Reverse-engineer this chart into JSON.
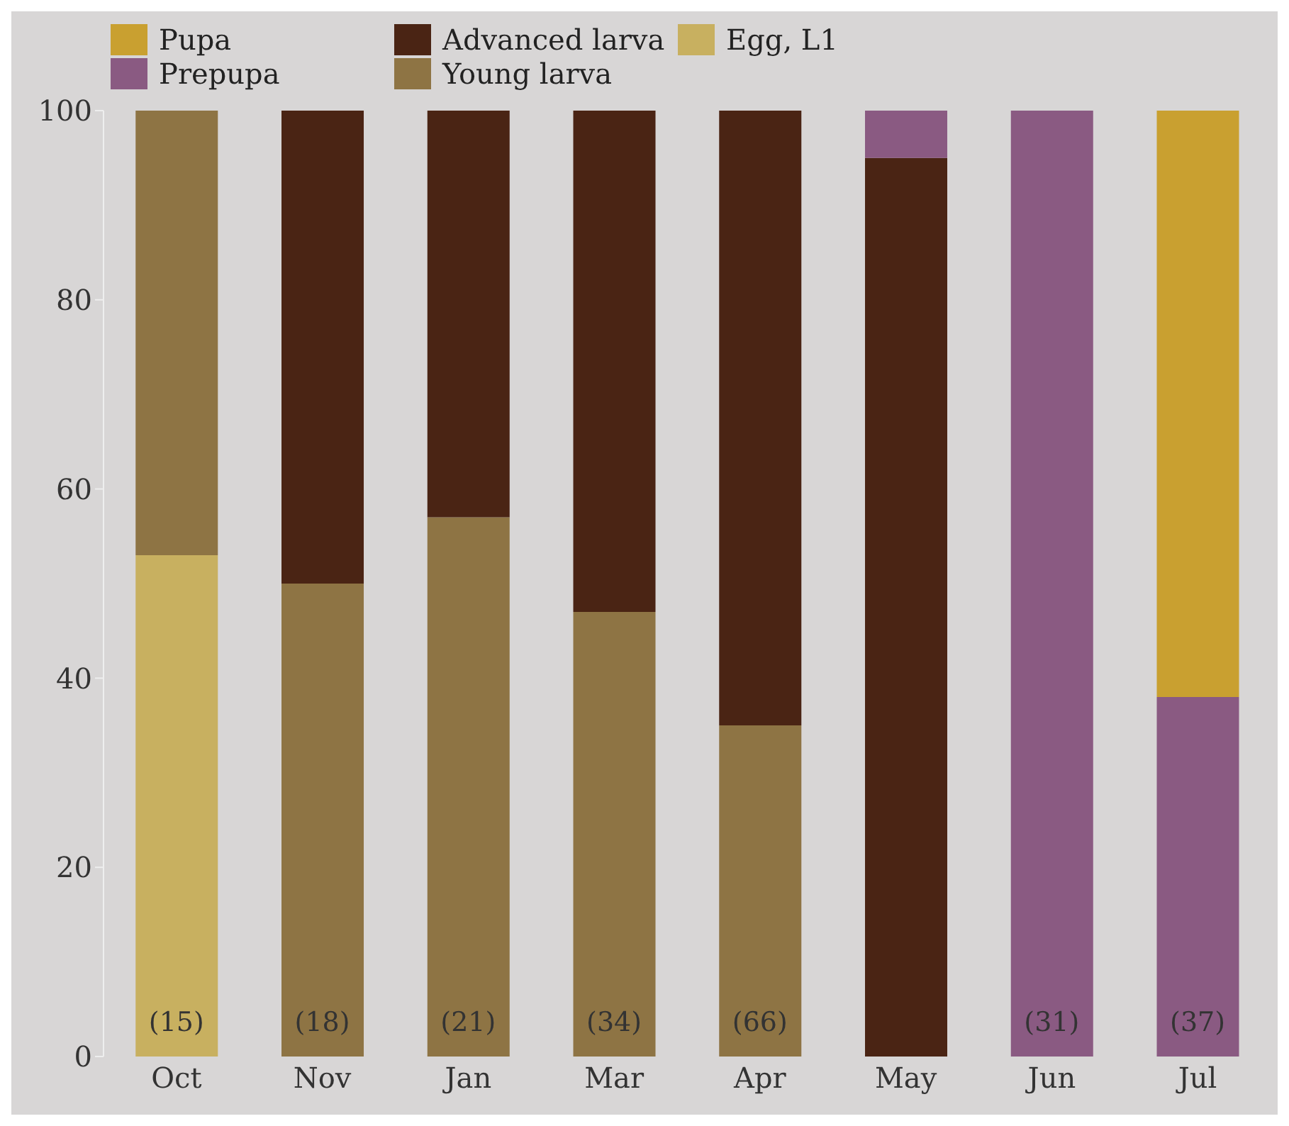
{
  "chart_data": {
    "type": "bar",
    "stacked": true,
    "categories": [
      "Oct",
      "Nov",
      "Jan",
      "Mar",
      "Apr",
      "May",
      "Jun",
      "Jul"
    ],
    "series": [
      {
        "name": "Egg, L1",
        "color": "#c8b060",
        "values": [
          53,
          null,
          null,
          null,
          null,
          null,
          null,
          null
        ]
      },
      {
        "name": "Young larva",
        "color": "#8e7444",
        "values": [
          47,
          50,
          57,
          47,
          35,
          null,
          null,
          null
        ]
      },
      {
        "name": "Advanced larva",
        "color": "#4a2414",
        "values": [
          null,
          50,
          43,
          53,
          65,
          95,
          null,
          null
        ]
      },
      {
        "name": "Prepupa",
        "color": "#8a5a82",
        "values": [
          null,
          null,
          null,
          null,
          null,
          5,
          100,
          38
        ]
      },
      {
        "name": "Pupa",
        "color": "#c9a030",
        "values": [
          null,
          null,
          null,
          null,
          null,
          null,
          null,
          62
        ]
      }
    ],
    "ylim": [
      0,
      100
    ],
    "yticks": [
      0,
      20,
      40,
      60,
      80,
      100
    ],
    "legend": "top left",
    "grid": false,
    "annotations": [
      "(15)",
      "(18)",
      "(21)",
      "(34)",
      "(66)",
      null,
      "(31)",
      "(37)"
    ]
  }
}
